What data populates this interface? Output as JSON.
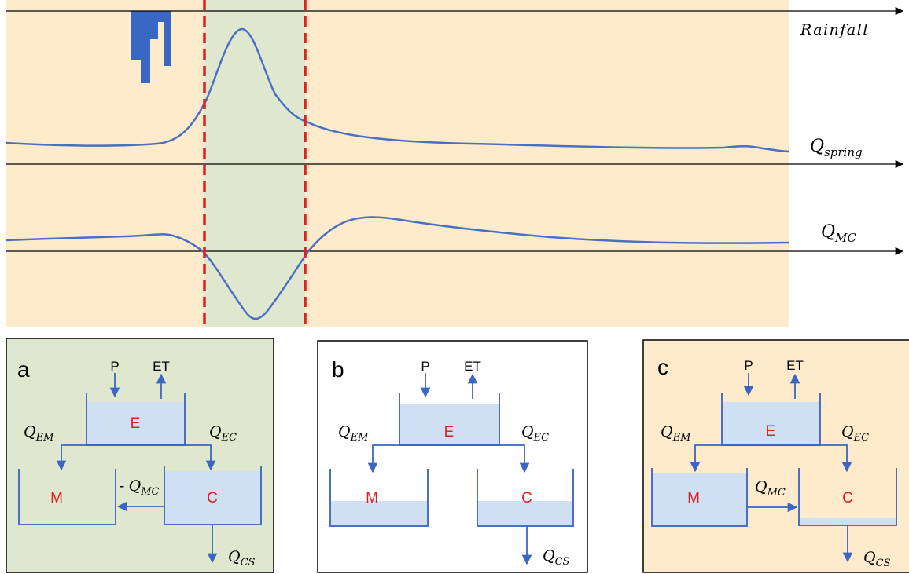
{
  "timeseries": {
    "rainfall_label": "Rainfall",
    "qspring_label_main": "Q",
    "qspring_label_sub": "spring",
    "qmc_label_main": "Q",
    "qmc_label_sub": "MC"
  },
  "colors": {
    "background_panel": "#fdebcb",
    "highlight_band": "#dfe8cf",
    "curve": "#4a6fc6",
    "dashed_marker": "#e0201c",
    "reservoir_water": "#cfe0f3",
    "reservoir_border": "#4a6fc6",
    "reservoir_label": "#e02020",
    "flow_arrow": "#3a66c4"
  },
  "panels": [
    {
      "id": "a",
      "letter": "a",
      "labels": {
        "p": "P",
        "et": "ET",
        "q_em_main": "Q",
        "q_em_sub": "EM",
        "q_ec_main": "Q",
        "q_ec_sub": "EC",
        "q_mc_prefix": "- ",
        "q_mc_main": "Q",
        "q_mc_sub": "MC",
        "q_cs_main": "Q",
        "q_cs_sub": "CS",
        "res_e": "E",
        "res_m": "M",
        "res_c": "C"
      }
    },
    {
      "id": "b",
      "letter": "b",
      "labels": {
        "p": "P",
        "et": "ET",
        "q_em_main": "Q",
        "q_em_sub": "EM",
        "q_ec_main": "Q",
        "q_ec_sub": "EC",
        "q_cs_main": "Q",
        "q_cs_sub": "CS",
        "res_e": "E",
        "res_m": "M",
        "res_c": "C"
      }
    },
    {
      "id": "c",
      "letter": "c",
      "labels": {
        "p": "P",
        "et": "ET",
        "q_em_main": "Q",
        "q_em_sub": "EM",
        "q_ec_main": "Q",
        "q_ec_sub": "EC",
        "q_mc_main": "Q",
        "q_mc_sub": "MC",
        "q_cs_main": "Q",
        "q_cs_sub": "CS",
        "res_e": "E",
        "res_m": "M",
        "res_c": "C"
      }
    }
  ]
}
